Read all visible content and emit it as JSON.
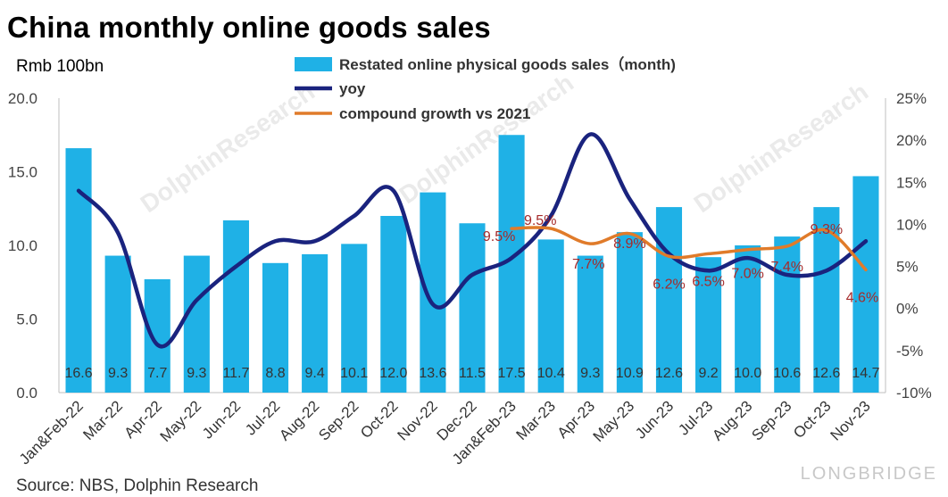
{
  "title": "China monthly online goods sales",
  "unit_label": "Rmb 100bn",
  "source": "Source: NBS, Dolphin Research",
  "watermark": {
    "brand": "DolphinResearch",
    "logo": "LONGBRIDGE"
  },
  "chart_data": {
    "type": "bar",
    "categories": [
      "Jan&Feb-22",
      "Mar-22",
      "Apr-22",
      "May-22",
      "Jun-22",
      "Jul-22",
      "Aug-22",
      "Sep-22",
      "Oct-22",
      "Nov-22",
      "Dec-22",
      "Jan&Feb-23",
      "Mar-23",
      "Apr-23",
      "May-23",
      "Jun-23",
      "Jul-23",
      "Aug-23",
      "Sep-23",
      "Oct-23",
      "Nov-23"
    ],
    "bar_labels": [
      "16.6",
      "9.3",
      "7.7",
      "9.3",
      "11.7",
      "8.8",
      "9.4",
      "10.1",
      "12.0",
      "13.6",
      "11.5",
      "17.5",
      "10.4",
      "9.3",
      "10.9",
      "12.6",
      "9.2",
      "10.0",
      "10.6",
      "12.6",
      "14.7"
    ],
    "series": [
      {
        "name": "Restated online physical goods sales（month)",
        "kind": "bar",
        "axis": "left",
        "color": "#1fb1e6",
        "values": [
          16.6,
          9.3,
          7.7,
          9.3,
          11.7,
          8.8,
          9.4,
          10.1,
          12.0,
          13.6,
          11.5,
          17.5,
          10.4,
          9.3,
          10.9,
          12.6,
          9.2,
          10.0,
          10.6,
          12.6,
          14.7
        ]
      },
      {
        "name": "yoy",
        "kind": "line",
        "axis": "right",
        "color": "#1a237e",
        "values": [
          14.0,
          9.0,
          -4.3,
          1.0,
          5.0,
          8.0,
          8.0,
          11.0,
          14.0,
          0.5,
          4.0,
          6.0,
          11.0,
          20.7,
          13.0,
          6.5,
          4.5,
          6.0,
          4.0,
          4.5,
          8.0
        ]
      },
      {
        "name": "compound growth vs 2021",
        "kind": "line",
        "axis": "right",
        "color": "#e07b2a",
        "values": [
          null,
          null,
          null,
          null,
          null,
          null,
          null,
          null,
          null,
          null,
          null,
          9.5,
          9.5,
          7.7,
          8.9,
          6.2,
          6.5,
          7.0,
          7.4,
          9.3,
          4.6
        ]
      }
    ],
    "rate_labels": [
      "",
      "",
      "",
      "",
      "",
      "",
      "",
      "",
      "",
      "",
      "",
      "9.5%",
      "9.5%",
      "7.7%",
      "8.9%",
      "6.2%",
      "6.5%",
      "7.0%",
      "7.4%",
      "9.3%",
      "4.6%"
    ],
    "left_axis": {
      "range": [
        0,
        20
      ],
      "ticks": [
        "0.0",
        "5.0",
        "10.0",
        "15.0",
        "20.0"
      ]
    },
    "right_axis": {
      "range": [
        -10,
        25
      ],
      "ticks": [
        "-10%",
        "-5%",
        "0%",
        "5%",
        "10%",
        "15%",
        "20%",
        "25%"
      ]
    },
    "legend_position": "top-center",
    "grid": false
  }
}
